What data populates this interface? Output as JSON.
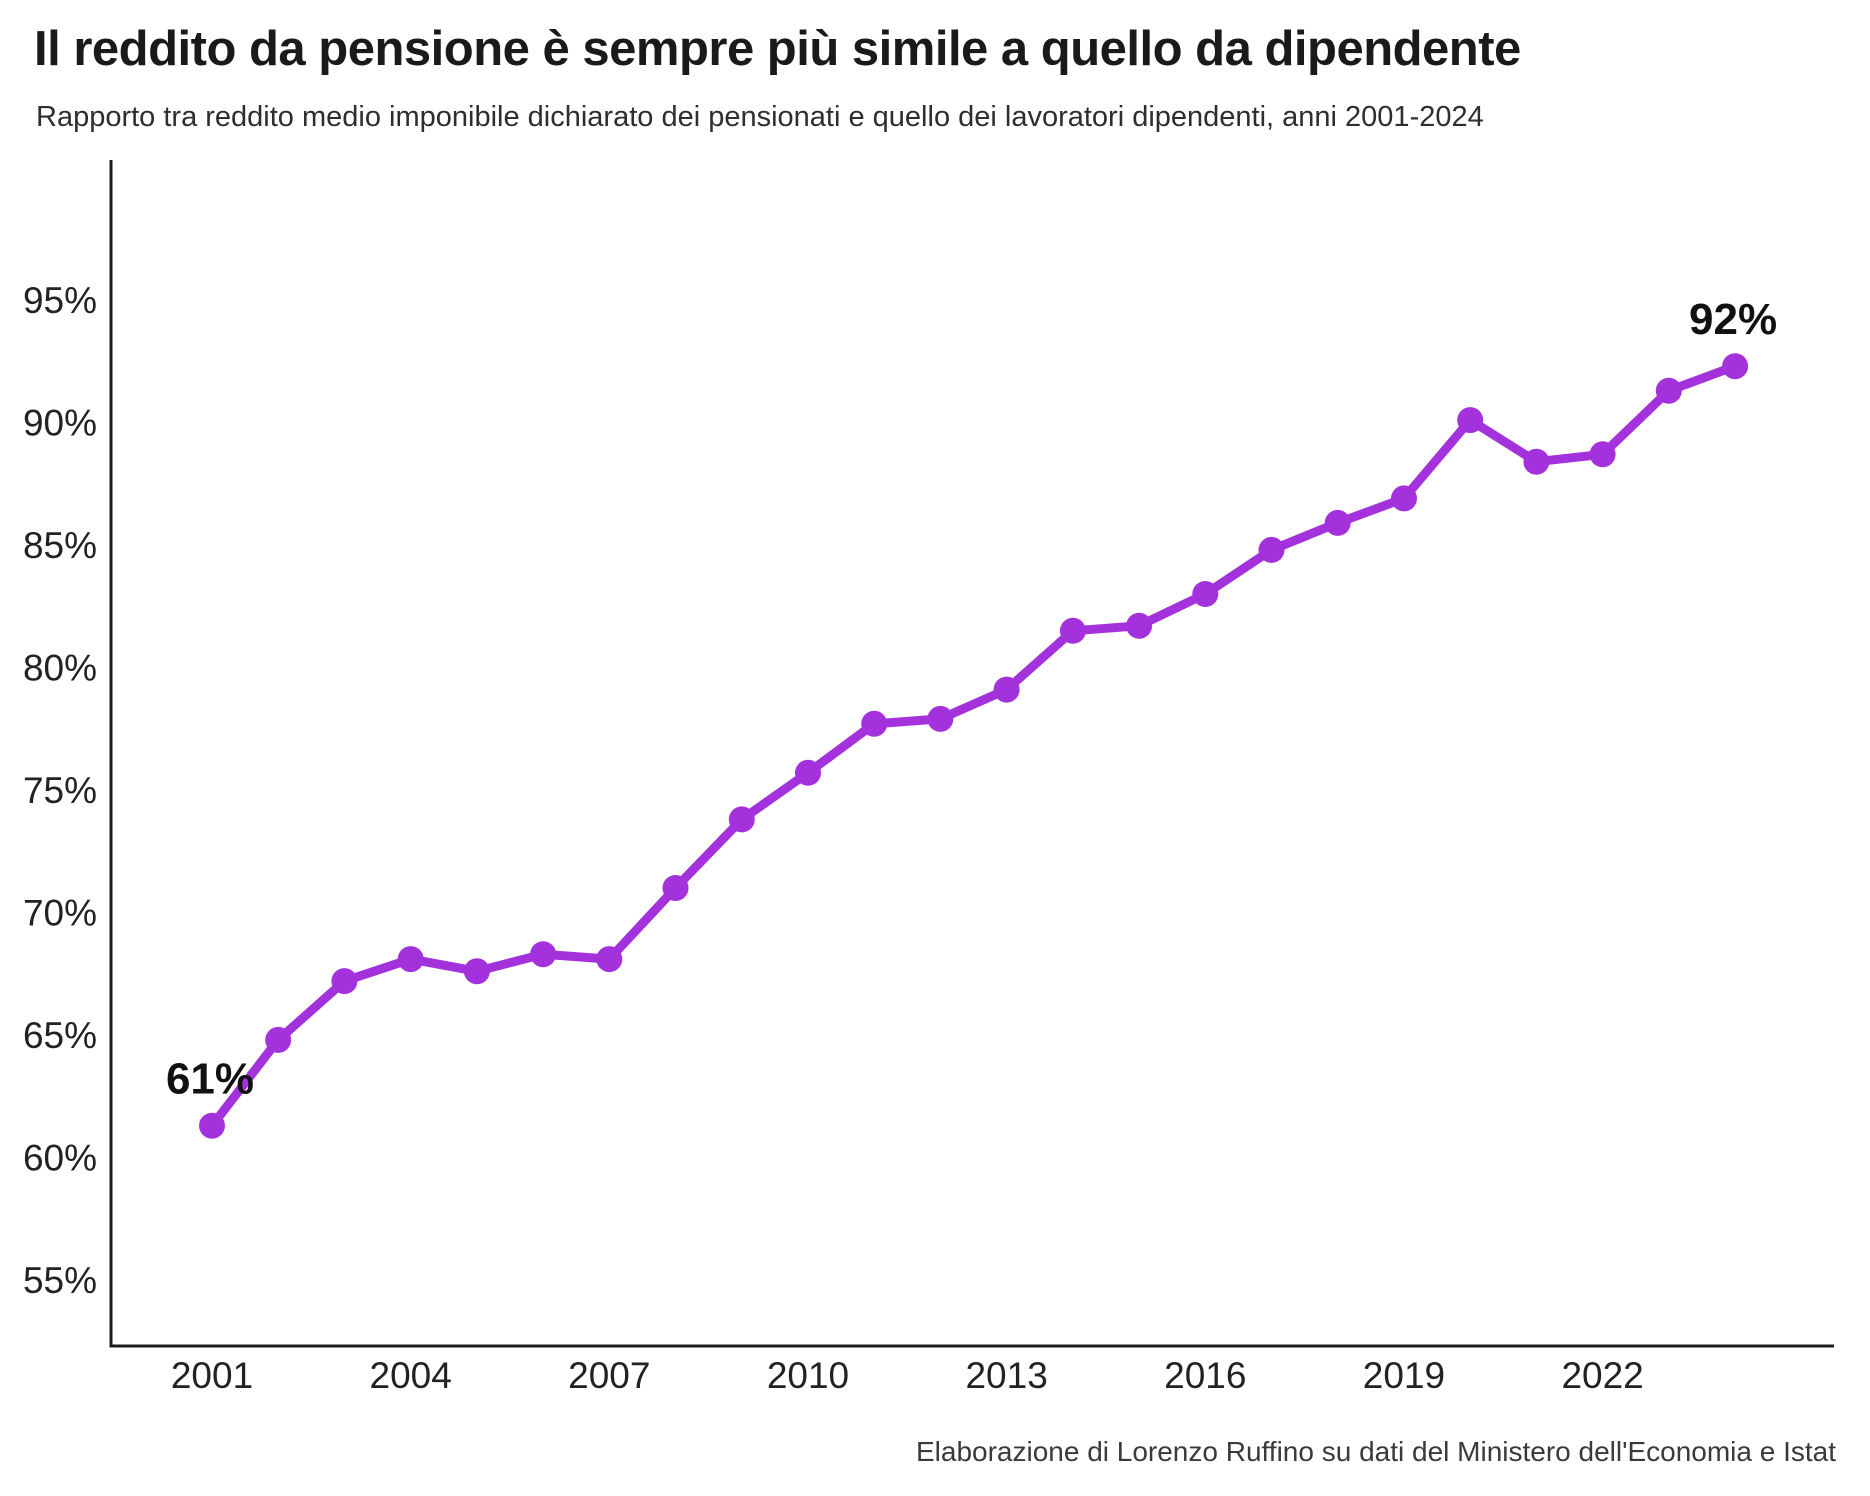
{
  "page": {
    "title": "Il reddito da pensione è sempre più simile a quello da dipendente",
    "subtitle": "Rapporto tra reddito medio imponibile dichiarato dei pensionati e quello dei lavoratori dipendenti, anni 2001-2024",
    "source": "Elaborazione di Lorenzo Ruffino su dati del Ministero dell'Economia e Istat"
  },
  "chart_data": {
    "type": "line",
    "title": "Il reddito da pensione è sempre più simile a quello da dipendente",
    "subtitle": "Rapporto tra reddito medio imponibile dichiarato dei pensionati e quello dei lavoratori dipendenti, anni 2001-2024",
    "x": [
      2001,
      2002,
      2003,
      2004,
      2005,
      2006,
      2007,
      2008,
      2009,
      2010,
      2011,
      2012,
      2013,
      2014,
      2015,
      2016,
      2017,
      2018,
      2019,
      2020,
      2021,
      2022,
      2023,
      2024
    ],
    "values": [
      61.3,
      64.8,
      67.2,
      68.1,
      67.6,
      68.3,
      68.1,
      71.0,
      73.8,
      75.7,
      77.7,
      77.9,
      79.1,
      81.5,
      81.7,
      83.0,
      84.8,
      85.9,
      86.9,
      90.1,
      88.4,
      88.7,
      91.3,
      92.3
    ],
    "x_ticks": [
      2001,
      2004,
      2007,
      2010,
      2013,
      2016,
      2019,
      2022
    ],
    "y_ticks": [
      95,
      90,
      85,
      80,
      75,
      70,
      65,
      60,
      55
    ],
    "y_tick_suffix": "%",
    "ylim": [
      52,
      101
    ],
    "xlabel": "",
    "ylabel": "",
    "grid": false,
    "legend": null,
    "line_color": "#a432dc",
    "point_color": "#a432dc",
    "annotation_color": "#111111",
    "axis_color": "#1c1c1c",
    "tick_label_color": "#222222",
    "annotations": [
      {
        "year": 2001,
        "label": "61%"
      },
      {
        "year": 2024,
        "label": "92%"
      }
    ],
    "source": "Elaborazione di Lorenzo Ruffino su dati del Ministero dell'Economia e Istat"
  }
}
